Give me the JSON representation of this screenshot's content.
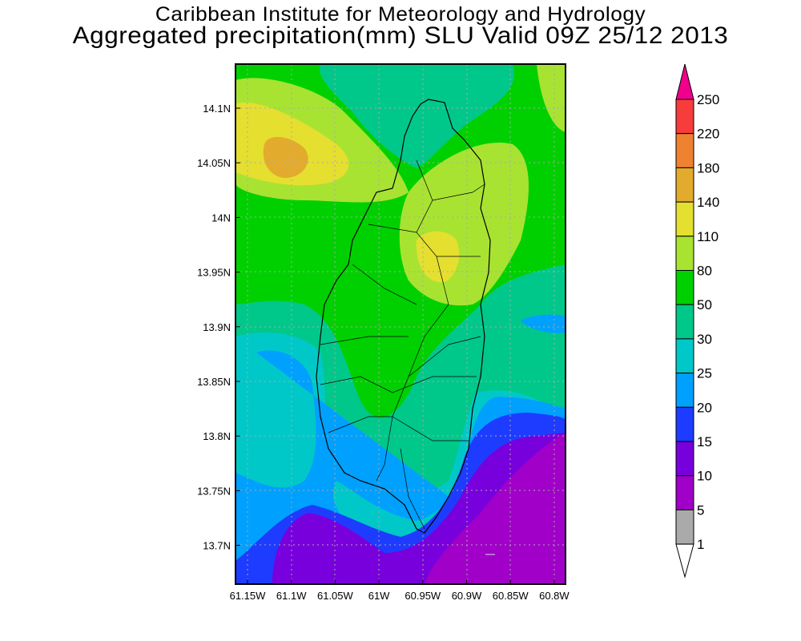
{
  "title": {
    "line1": "Caribbean Institute for Meteorology and Hydrology",
    "line2": "Aggregated precipitation(mm) SLU Valid 09Z 25/12 2013"
  },
  "lat_ticks": [
    "14.1N",
    "14.05N",
    "14N",
    "13.95N",
    "13.9N",
    "13.85N",
    "13.8N",
    "13.75N",
    "13.7N"
  ],
  "lon_ticks": [
    "61.15W",
    "61.1W",
    "61.05W",
    "61W",
    "60.95W",
    "60.9W",
    "60.85W",
    "60.8W"
  ],
  "colorbar": {
    "labels": [
      "250",
      "220",
      "180",
      "140",
      "110",
      "80",
      "50",
      "30",
      "25",
      "20",
      "15",
      "10",
      "5",
      "1"
    ],
    "colors": [
      "#f73c3c",
      "#ef8230",
      "#e3ab2e",
      "#e5df2f",
      "#a8e332",
      "#00d000",
      "#00c88a",
      "#00c8c8",
      "#00a0ff",
      "#1e3cff",
      "#7800dc",
      "#a000c8",
      "#aaaaaa"
    ],
    "over_color": "#f0008c",
    "under_color": "#ffffff"
  }
}
